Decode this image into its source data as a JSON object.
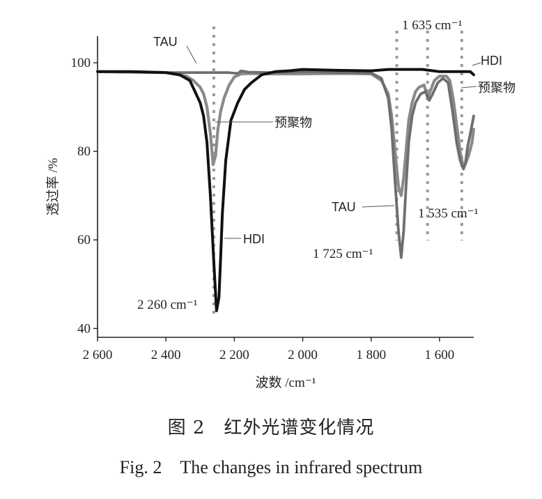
{
  "chart_data": {
    "type": "line",
    "xlabel": "波数 /cm⁻¹",
    "ylabel": "透过率 /%",
    "xlim": [
      2600,
      1500
    ],
    "ylim": [
      38,
      106
    ],
    "xticks": [
      2600,
      2400,
      2200,
      2000,
      1800,
      1600
    ],
    "xtick_labels": [
      "2 600",
      "2 400",
      "2 200",
      "2 000",
      "1 800",
      "1 600"
    ],
    "yticks": [
      40,
      60,
      80,
      100
    ],
    "ytick_labels": [
      "40",
      "60",
      "80",
      "100"
    ],
    "series": [
      {
        "name": "HDI",
        "color": "#111111",
        "x": [
          2600,
          2500,
          2400,
          2360,
          2330,
          2300,
          2290,
          2280,
          2270,
          2260,
          2252,
          2245,
          2240,
          2235,
          2225,
          2210,
          2190,
          2170,
          2150,
          2120,
          2080,
          2040,
          2000,
          1900,
          1800,
          1750,
          1700,
          1650,
          1600,
          1550,
          1510,
          1500
        ],
        "y": [
          98,
          98,
          97.8,
          97.3,
          96,
          91,
          88,
          82,
          70,
          55,
          44,
          47,
          56,
          66,
          78,
          87,
          91,
          94,
          95.5,
          97.3,
          98,
          98.2,
          98.5,
          98.3,
          98.2,
          98.5,
          98.5,
          98.5,
          98,
          98,
          98,
          97.3
        ]
      },
      {
        "name": "预聚物",
        "color": "#8a8a8a",
        "x": [
          2600,
          2400,
          2340,
          2320,
          2300,
          2290,
          2280,
          2270,
          2262,
          2255,
          2248,
          2240,
          2230,
          2215,
          2200,
          2180,
          2150,
          2100,
          2050,
          2000,
          1900,
          1800,
          1770,
          1750,
          1740,
          1730,
          1720,
          1712,
          1705,
          1698,
          1690,
          1680,
          1670,
          1660,
          1645,
          1635,
          1625,
          1615,
          1600,
          1580,
          1570,
          1560,
          1550,
          1540,
          1532,
          1525,
          1515,
          1505,
          1500
        ],
        "y": [
          98,
          97.8,
          97,
          96,
          94.5,
          93,
          90,
          84,
          77,
          79,
          85,
          89,
          92,
          95,
          96.8,
          97.5,
          97.6,
          97.5,
          97.5,
          97.5,
          97.6,
          97.5,
          96,
          93,
          88,
          80,
          72,
          70,
          74,
          80,
          87,
          91,
          93.5,
          94.5,
          95,
          92,
          94,
          96,
          97,
          97,
          96,
          92,
          86,
          80,
          77,
          77,
          79,
          82,
          85
        ]
      },
      {
        "name": "TAU",
        "color": "#6e6e6e",
        "x": [
          2600,
          2500,
          2400,
          2300,
          2260,
          2220,
          2190,
          2180,
          2160,
          2100,
          2000,
          1900,
          1800,
          1770,
          1750,
          1740,
          1730,
          1720,
          1712,
          1705,
          1698,
          1690,
          1680,
          1670,
          1655,
          1640,
          1630,
          1620,
          1605,
          1590,
          1575,
          1562,
          1550,
          1540,
          1530,
          1525,
          1518,
          1510,
          1500
        ],
        "y": [
          98,
          97.9,
          97.8,
          97.8,
          97.8,
          97.8,
          97.6,
          98.2,
          97.9,
          97.8,
          98,
          97.8,
          97.7,
          96.5,
          92,
          85,
          73,
          62,
          56,
          62,
          72,
          82,
          88,
          91,
          93,
          93.5,
          91.5,
          93,
          95.5,
          96.5,
          95.5,
          89,
          82,
          78,
          76,
          77,
          81,
          84,
          88
        ]
      }
    ],
    "annotations": {
      "tau_left": "TAU",
      "tau_right": "TAU",
      "hdi_left": "HDI",
      "hdi_right": "HDI",
      "prepolymer_left": "预聚物",
      "prepolymer_right": "预聚物",
      "peak_2260": "2 260 cm⁻¹",
      "peak_1725": "1 725 cm⁻¹",
      "peak_1635": "1 635 cm⁻¹",
      "peak_1535": "1 535 cm⁻¹"
    },
    "reference_lines_x": [
      2260,
      1725,
      1635,
      1535
    ]
  },
  "captions": {
    "chinese": "图 2　红外光谱变化情况",
    "english": "Fig. 2　The changes in infrared spectrum"
  }
}
